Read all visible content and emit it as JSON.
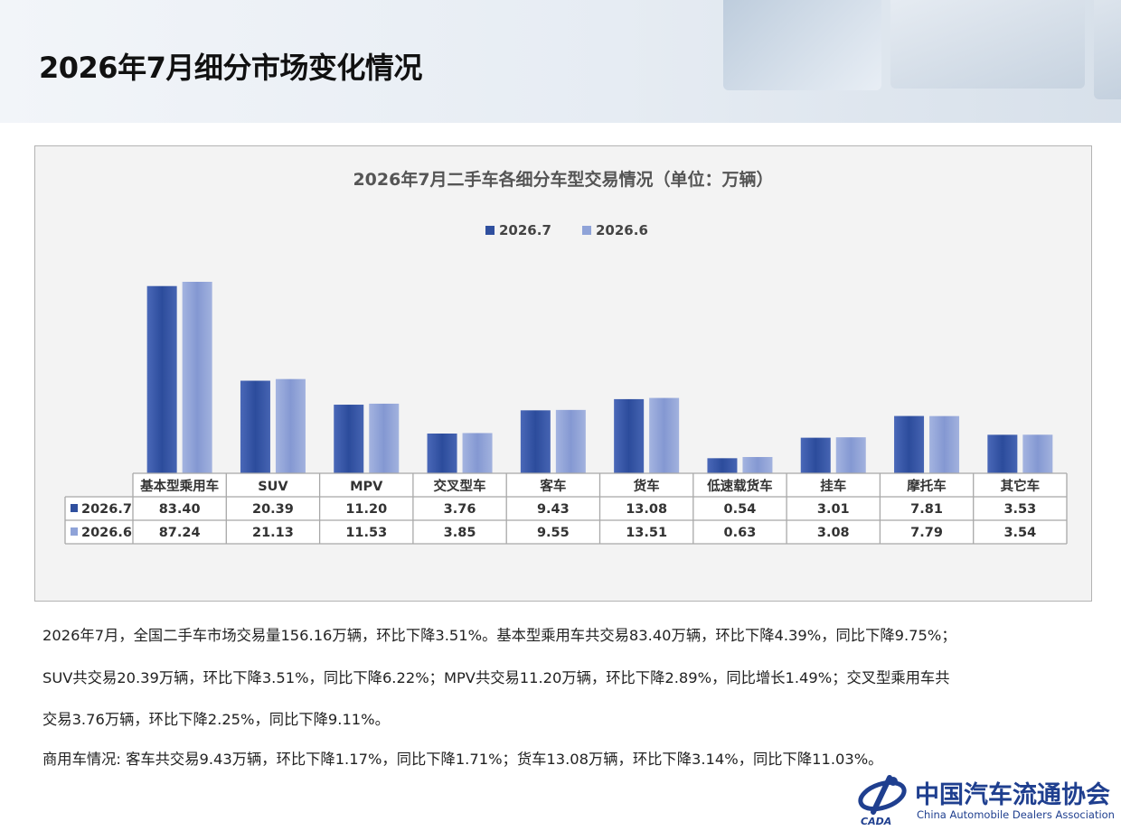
{
  "page": {
    "title": "2026年7月细分市场变化情况"
  },
  "chart_data": {
    "type": "bar",
    "title": "2026年7月二手车各细分车型交易情况（单位：万辆）",
    "categories": [
      "基本型乘用车",
      "SUV",
      "MPV",
      "交叉型车",
      "客车",
      "货车",
      "低速载货车",
      "挂车",
      "摩托车",
      "其它车"
    ],
    "series": [
      {
        "name": "2026.7",
        "color": "#2f4f9e",
        "values": [
          83.4,
          20.39,
          11.2,
          3.76,
          9.43,
          13.08,
          0.54,
          3.01,
          7.81,
          3.53
        ]
      },
      {
        "name": "2026.6",
        "color": "#8fa3d8",
        "values": [
          87.24,
          21.13,
          11.53,
          3.85,
          9.55,
          13.51,
          0.63,
          3.08,
          7.79,
          3.54
        ]
      }
    ],
    "value_labels": [
      [
        "83.40",
        "20.39",
        "11.20",
        "3.76",
        "9.43",
        "13.08",
        "0.54",
        "3.01",
        "7.81",
        "3.53"
      ],
      [
        "87.24",
        "21.13",
        "11.53",
        "3.85",
        "9.55",
        "13.51",
        "0.63",
        "3.08",
        "7.79",
        "3.54"
      ]
    ],
    "legend_position": "top-center",
    "data_table": true,
    "grid": false
  },
  "paragraphs": [
    "2026年7月，全国二手车市场交易量156.16万辆，环比下降3.51%。基本型乘用车共交易83.40万辆，环比下降4.39%，同比下降9.75%；",
    "SUV共交易20.39万辆，环比下降3.51%，同比下降6.22%；MPV共交易11.20万辆，环比下降2.89%，同比增长1.49%；交叉型乘用车共",
    "交易3.76万辆，环比下降2.25%，同比下降9.11%。",
    "商用车情况: 客车共交易9.43万辆，环比下降1.17%，同比下降1.71%；货车13.08万辆，环比下降3.14%，同比下降11.03%。"
  ],
  "logo": {
    "cn": "中国汽车流通协会",
    "en": "China Automobile Dealers Association",
    "abbr": "CADA",
    "color": "#1f3f8f"
  }
}
